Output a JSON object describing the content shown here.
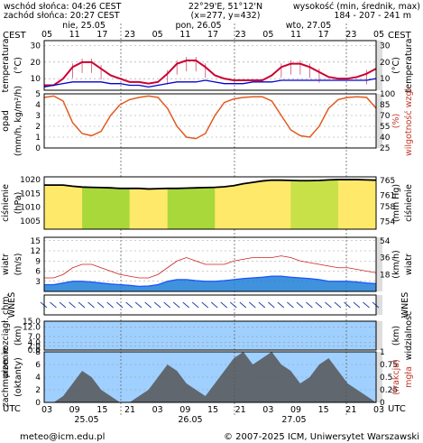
{
  "header": {
    "sunrise": "wschód słońca: 04:26 CEST",
    "sunset": "zachód słońca: 20:27 CEST",
    "coords": "22°29'E, 51°12'N",
    "grid": "(x=277, y=432)",
    "elevation_title": "wysokość (min, średnik, max)",
    "elevation_values": "184 - 207 - 241 m",
    "tz_left": "CEST",
    "tz_right": "CEST",
    "tz_bottom": "UTC"
  },
  "days_top": [
    "nie, 25.05",
    "pon, 26.05",
    "wto, 27.05"
  ],
  "days_bottom": [
    "25.05",
    "26.05",
    "27.05"
  ],
  "hours_top": [
    "05",
    "11",
    "17",
    "23",
    "05",
    "11",
    "17",
    "23",
    "05",
    "11",
    "17",
    "23",
    "05"
  ],
  "hours_bottom": [
    "03",
    "09",
    "15",
    "21",
    "03",
    "09",
    "15",
    "21",
    "03",
    "09",
    "15",
    "21",
    "03"
  ],
  "panels": {
    "temperature": {
      "label_left": "temperatura",
      "unit_left": "(°C)",
      "label_right": "temperatura",
      "unit_right": "(°C)",
      "ticks": [
        "30",
        "20",
        "10"
      ],
      "ticks_right": [
        "30",
        "20",
        "10"
      ]
    },
    "precip": {
      "label_left": "opad",
      "unit_left": "(mm/h, kg/m²/h)",
      "label_right": "wilgotność wzgl.",
      "unit_right": "(%)",
      "ticks": [
        "5",
        "4",
        "3",
        "2",
        "1",
        "0"
      ],
      "ticks_right": [
        "100",
        "85",
        "70",
        "55",
        "40",
        "25"
      ]
    },
    "pressure": {
      "label_left": "ciśnienie",
      "unit_left": "(hPa)",
      "label_right": "ciśnienie",
      "unit_right": "(mm Hg)",
      "ticks": [
        "1020",
        "1015",
        "1010",
        "1005"
      ],
      "ticks_right": [
        "765",
        "761",
        "758",
        "754"
      ]
    },
    "wind": {
      "label_left": "wiatr",
      "unit_left": "(m/s)",
      "label_right": "wiatr",
      "unit_right": "(km/h)",
      "ticks": [
        "15",
        "12",
        "9",
        "6",
        "3"
      ],
      "ticks_right": [
        "54",
        "36",
        "18"
      ]
    },
    "wind_dir": {
      "label_left": "WNES",
      "label_right": "WNES"
    },
    "visibility": {
      "label_left": "pion. rozciągł. chm.",
      "unit_left": "(km)",
      "label_right": "widzialność",
      "unit_right": "(km)",
      "ticks": [
        "15.0",
        "12.0",
        "7.0",
        "4.0",
        "2.0",
        "0.0"
      ],
      "ticks_right": [
        "100",
        "20",
        "10",
        "5",
        "1"
      ]
    },
    "clouds": {
      "label_left": "zachmurzenie",
      "unit_left": "(oktanty)",
      "label_right": "(frakcja)",
      "unit_right": "mgła",
      "ticks": [
        "8",
        "6",
        "4",
        "2",
        "0"
      ],
      "ticks_right": [
        "1",
        "0.75",
        "0.5",
        "0.25",
        "0"
      ]
    }
  },
  "footer": {
    "email": "meteo@icm.edu.pl",
    "copyright": "© 2007-2025 ICM, Uniwersytet Warszawski"
  },
  "colors": {
    "temp_line": "#cc0033",
    "dew_line": "#0000cc",
    "rh_line": "#e05a1e",
    "pressure_line": "#000000",
    "wind_line": "#1a53ff",
    "gust": "#cc2222",
    "sky": "#9fd0ff",
    "night": "#d8d8d8"
  },
  "chart_data": [
    {
      "type": "line",
      "series": [
        {
          "values": [
            6,
            6,
            10,
            17,
            20,
            20,
            16,
            12,
            10,
            8,
            8,
            7,
            8,
            13,
            19,
            21,
            21,
            17,
            12,
            10,
            9,
            9,
            9,
            9,
            12,
            17,
            19,
            19,
            17,
            14,
            11,
            10,
            10,
            11,
            13,
            16
          ]
        },
        {
          "values": [
            5,
            6,
            7,
            8,
            8,
            8,
            8,
            7,
            7,
            6,
            6,
            5,
            6,
            7,
            8,
            8,
            8,
            9,
            8,
            7,
            7,
            7,
            8,
            8,
            8,
            9,
            9,
            9,
            9,
            9,
            9,
            9,
            9,
            9,
            9,
            10
          ]
        }
      ]
    },
    {
      "type": "line",
      "series": [
        {
          "values": [
            95,
            97,
            90,
            60,
            45,
            42,
            48,
            70,
            85,
            92,
            95,
            97,
            95,
            80,
            55,
            40,
            38,
            45,
            70,
            88,
            93,
            95,
            96,
            96,
            90,
            70,
            50,
            42,
            40,
            55,
            80,
            92,
            95,
            96,
            95,
            80
          ]
        }
      ]
    },
    {
      "type": "area",
      "series": [
        {
          "values": [
            1018,
            1018,
            1018,
            1017.6,
            1017.3,
            1017.2,
            1017.1,
            1017,
            1016.8,
            1016.8,
            1016.8,
            1016.6,
            1016.7,
            1016.8,
            1016.8,
            1016.9,
            1017,
            1017.1,
            1017.2,
            1017.4,
            1017.8,
            1018.5,
            1019,
            1019.5,
            1019.8,
            1019.8,
            1019.7,
            1019.6,
            1019.6,
            1019.7,
            1019.9,
            1020,
            1020,
            1020,
            1019.9,
            1019.8
          ]
        }
      ]
    },
    {
      "type": "line",
      "series": [
        {
          "values": [
            2,
            2,
            2.5,
            3,
            3,
            2.8,
            2.5,
            2.2,
            2,
            1.8,
            1.5,
            1.6,
            2,
            3,
            3.5,
            3.5,
            3.2,
            3,
            3,
            3.2,
            3.5,
            3.8,
            4,
            4.2,
            4.5,
            4.5,
            4.2,
            4,
            3.8,
            3.5,
            3,
            3,
            3,
            2.8,
            2.5,
            2.3
          ]
        },
        {
          "values": [
            4,
            4,
            5,
            7,
            8,
            8,
            7,
            6,
            5,
            4.5,
            4,
            4,
            5,
            7,
            9,
            10,
            9,
            8,
            8,
            8,
            9,
            9.5,
            10,
            10,
            10,
            10.5,
            10,
            9,
            8.5,
            8,
            7.5,
            7,
            7,
            6.5,
            6,
            5.5
          ]
        }
      ]
    }
  ]
}
